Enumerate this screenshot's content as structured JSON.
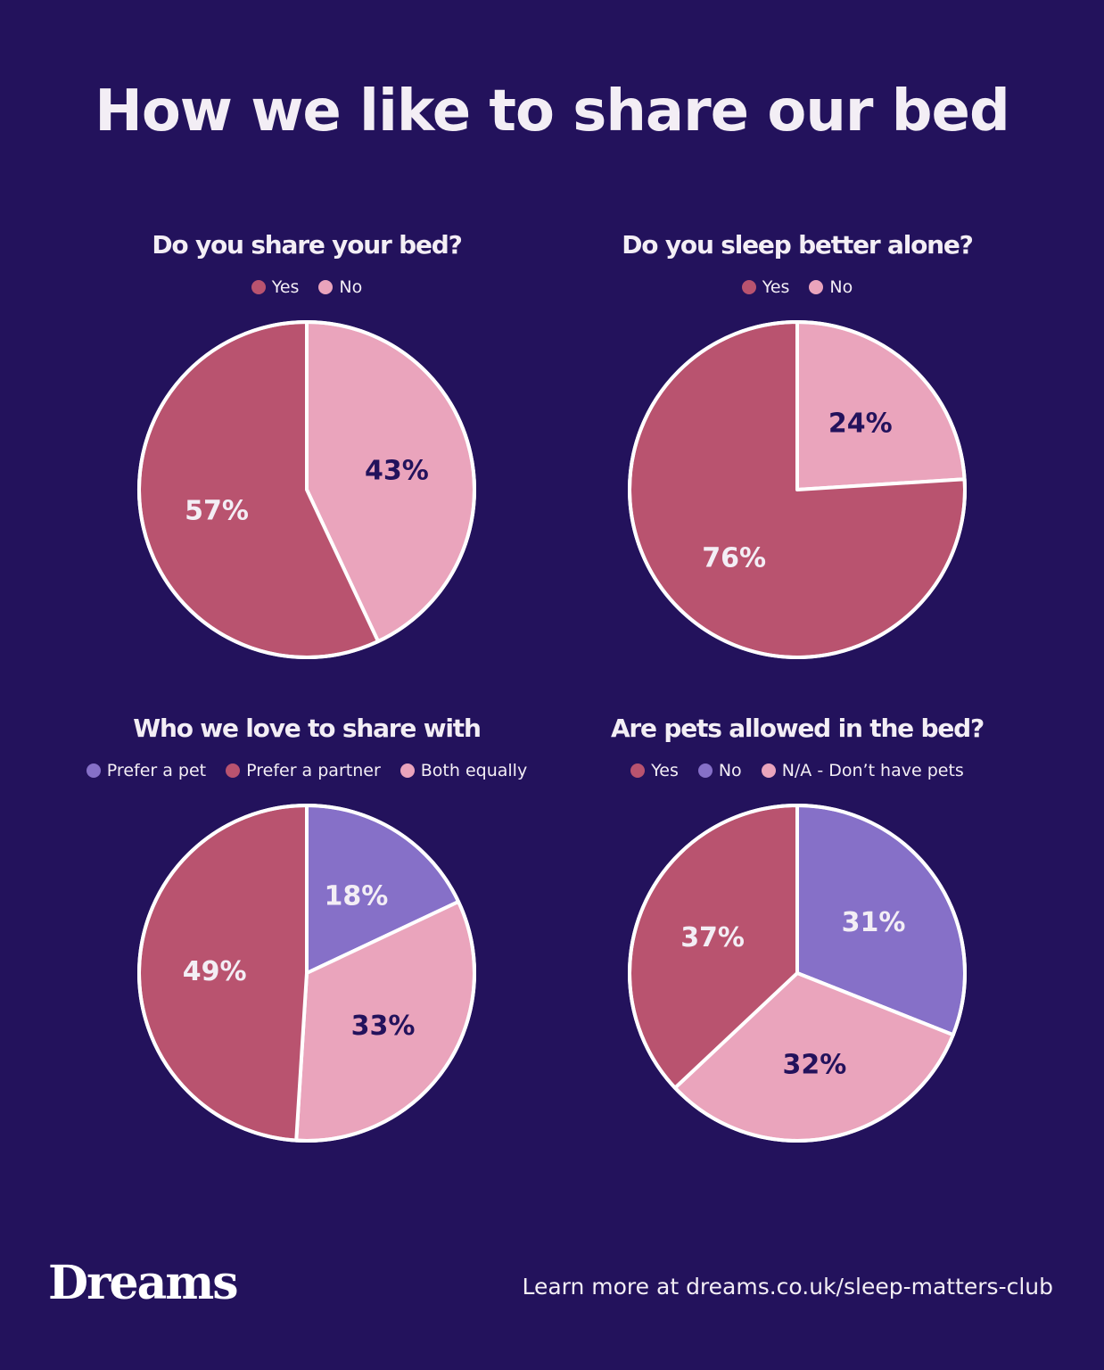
{
  "title": "How we like to share our bed",
  "colors": {
    "background": "#23125c",
    "rose": "#b9536f",
    "pink": "#eaa4bc",
    "purple": "#8670c8",
    "label_dark": "#23125c",
    "label_light": "#f3eef5",
    "stroke": "#ffffff"
  },
  "chart_data": [
    {
      "type": "pie",
      "title": "Do you share your bed?",
      "slices": [
        {
          "name": "No",
          "value": 43,
          "label": "43%",
          "color": "#eaa4bc"
        },
        {
          "name": "Yes",
          "value": 57,
          "label": "57%",
          "color": "#b9536f"
        }
      ],
      "legend": [
        {
          "name": "Yes",
          "color": "#b9536f"
        },
        {
          "name": "No",
          "color": "#eaa4bc"
        }
      ],
      "legend_position": "top"
    },
    {
      "type": "pie",
      "title": "Do you sleep better alone?",
      "slices": [
        {
          "name": "No",
          "value": 24,
          "label": "24%",
          "color": "#eaa4bc"
        },
        {
          "name": "Yes",
          "value": 76,
          "label": "76%",
          "color": "#b9536f"
        }
      ],
      "legend": [
        {
          "name": "Yes",
          "color": "#b9536f"
        },
        {
          "name": "No",
          "color": "#eaa4bc"
        }
      ],
      "legend_position": "top"
    },
    {
      "type": "pie",
      "title": "Who we love to share with",
      "slices": [
        {
          "name": "Prefer a pet",
          "value": 18,
          "label": "18%",
          "color": "#8670c8"
        },
        {
          "name": "Both equally",
          "value": 33,
          "label": "33%",
          "color": "#eaa4bc"
        },
        {
          "name": "Prefer a partner",
          "value": 49,
          "label": "49%",
          "color": "#b9536f"
        }
      ],
      "legend": [
        {
          "name": "Prefer a pet",
          "color": "#8670c8"
        },
        {
          "name": "Prefer a partner",
          "color": "#b9536f"
        },
        {
          "name": "Both equally",
          "color": "#eaa4bc"
        }
      ],
      "legend_position": "top"
    },
    {
      "type": "pie",
      "title": "Are pets allowed in the bed?",
      "slices": [
        {
          "name": "No",
          "value": 31,
          "label": "31%",
          "color": "#8670c8"
        },
        {
          "name": "N/A - Don’t have pets",
          "value": 32,
          "label": "32%",
          "color": "#eaa4bc"
        },
        {
          "name": "Yes",
          "value": 37,
          "label": "37%",
          "color": "#b9536f"
        }
      ],
      "legend": [
        {
          "name": "Yes",
          "color": "#b9536f"
        },
        {
          "name": "No",
          "color": "#8670c8"
        },
        {
          "name": "N/A - Don’t have pets",
          "color": "#eaa4bc"
        }
      ],
      "legend_position": "top"
    }
  ],
  "logo": "Dreams",
  "footer": "Learn more at dreams.co.uk/sleep-matters-club"
}
